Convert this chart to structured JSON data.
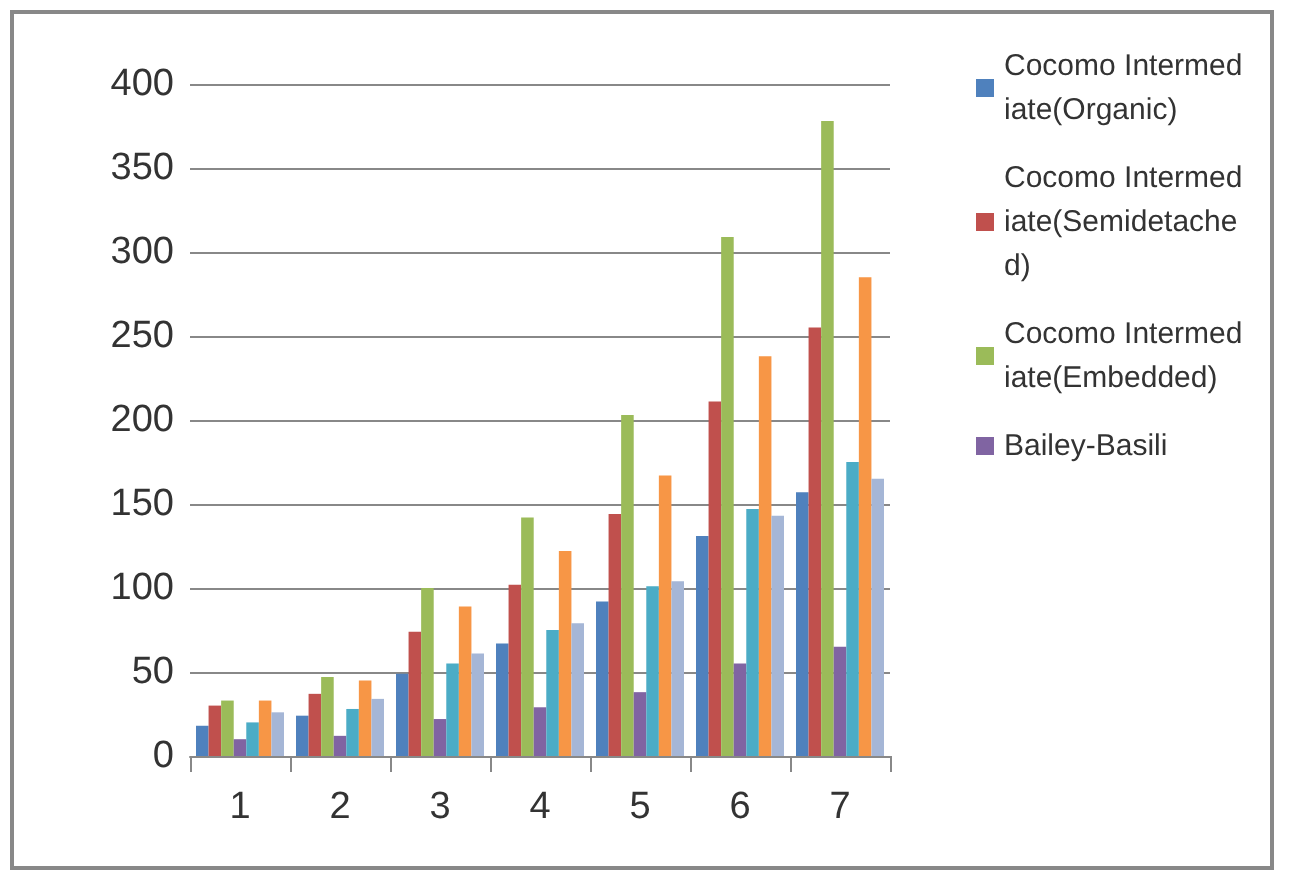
{
  "chart_data": {
    "type": "bar",
    "categories": [
      "1",
      "2",
      "3",
      "4",
      "5",
      "6",
      "7"
    ],
    "series": [
      {
        "name": "Cocomo Intermediate(Organic)",
        "color": "#4f81bd",
        "values": [
          18,
          24,
          49,
          67,
          92,
          131,
          157
        ]
      },
      {
        "name": "Cocomo Intermediate(Semidetached)",
        "color": "#c0504d",
        "values": [
          30,
          37,
          74,
          102,
          144,
          211,
          255
        ]
      },
      {
        "name": "Cocomo Intermediate(Embedded)",
        "color": "#9bbb59",
        "values": [
          33,
          47,
          100,
          142,
          203,
          309,
          378
        ]
      },
      {
        "name": "Bailey-Basili",
        "color": "#8064a2",
        "values": [
          10,
          12,
          22,
          29,
          38,
          55,
          65
        ]
      },
      {
        "color": "#4bacc6",
        "values": [
          20,
          28,
          55,
          75,
          101,
          147,
          175
        ]
      },
      {
        "color": "#f79646",
        "values": [
          33,
          45,
          89,
          122,
          167,
          238,
          285
        ]
      },
      {
        "color": "#a5b6d6",
        "values": [
          26,
          34,
          61,
          79,
          104,
          143,
          165
        ]
      }
    ],
    "ylim": [
      0,
      400
    ],
    "yticks": [
      0,
      50,
      100,
      150,
      200,
      250,
      300,
      350,
      400
    ],
    "grid": "y",
    "legend": "right"
  }
}
